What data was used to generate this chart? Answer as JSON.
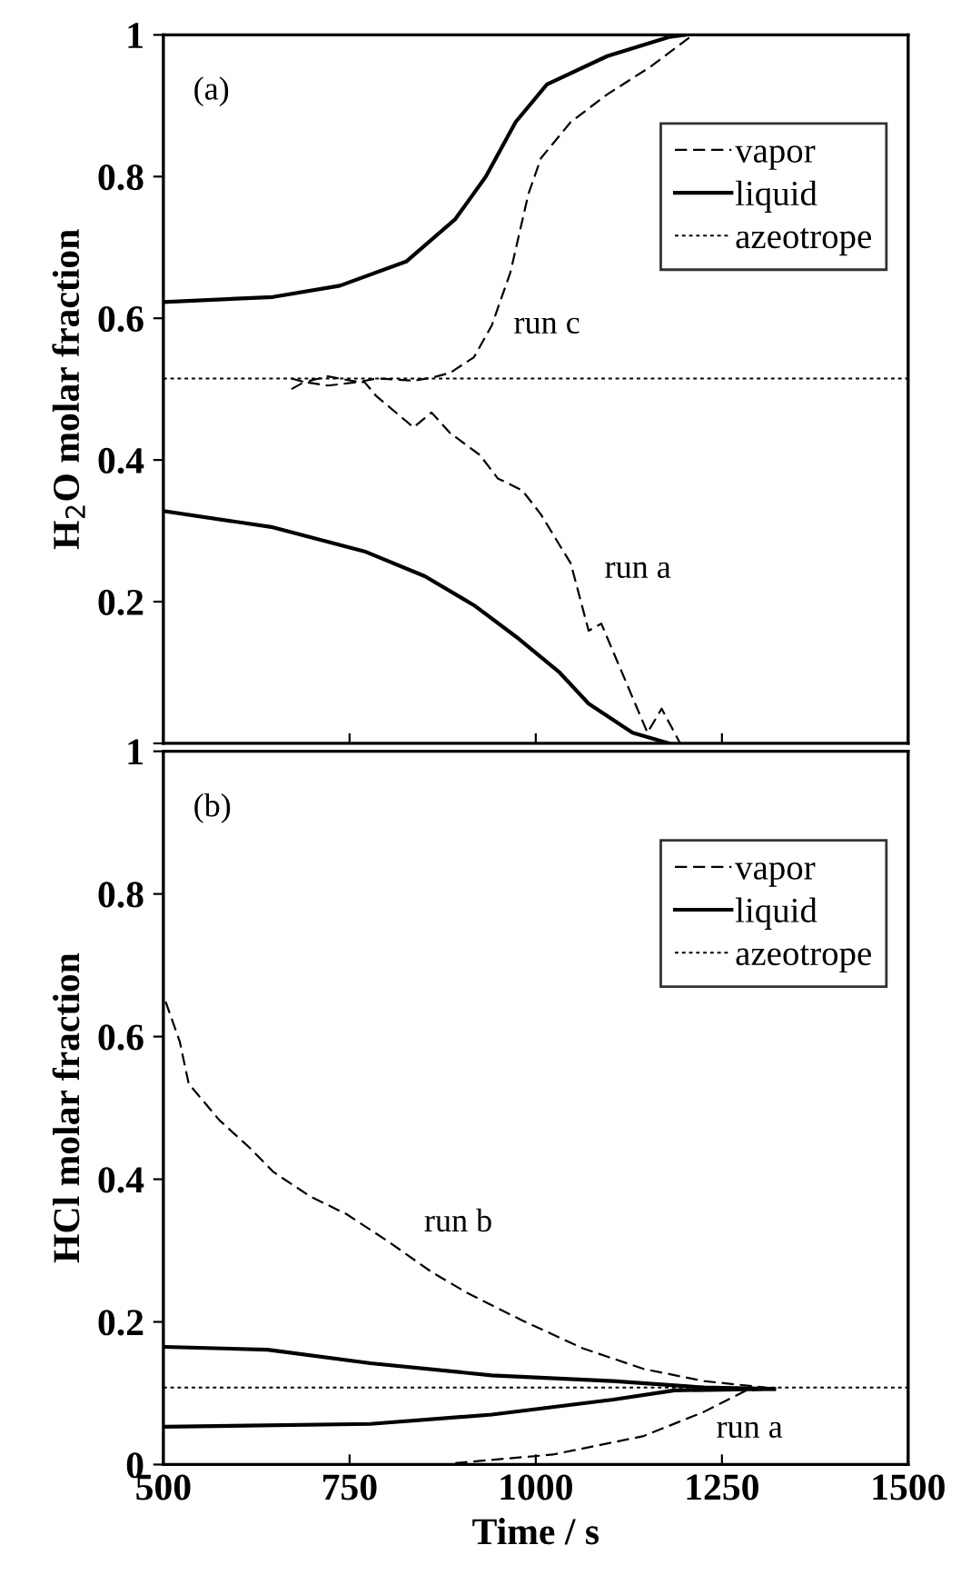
{
  "chart_data": [
    {
      "type": "line",
      "ylabel": "H$_{2}$O molar fraction",
      "xlim": [
        500,
        1500
      ],
      "ylim": [
        0,
        1
      ],
      "xticks": [
        500,
        750,
        1000,
        1250,
        1500
      ],
      "yticks": [
        {
          "value": 0,
          "label": null
        },
        0.2,
        0.4,
        0.6,
        0.8,
        1
      ],
      "tick_labels": "y",
      "legend": "top right",
      "grid": false,
      "series": [
        {
          "name": "vapor",
          "color": "#000000",
          "line_style": "dashed",
          "x": [
            672,
            689,
            721,
            762,
            786,
            836,
            860,
            885,
            917,
            941,
            966,
            990,
            1007,
            1047,
            1096,
            1154,
            1211
          ],
          "values": [
            0.515,
            0.51,
            0.518,
            0.51,
            0.515,
            0.512,
            0.516,
            0.523,
            0.545,
            0.59,
            0.665,
            0.775,
            0.826,
            0.877,
            0.916,
            0.955,
            1.0
          ]
        },
        {
          "color": "#000000",
          "line_style": "dashed",
          "x": [
            672,
            689,
            721,
            762,
            770,
            786,
            836,
            860,
            885,
            925,
            949,
            982,
            1007,
            1047,
            1071,
            1088,
            1150,
            1169,
            1194
          ],
          "values": [
            0.5,
            0.51,
            0.505,
            0.51,
            0.51,
            0.49,
            0.446,
            0.467,
            0.438,
            0.407,
            0.374,
            0.357,
            0.323,
            0.254,
            0.159,
            0.169,
            0.015,
            0.049,
            0
          ]
        },
        {
          "name": "liquid",
          "color": "#000000",
          "line_style": "solid",
          "x": [
            500,
            647,
            737,
            826,
            892,
            933,
            973,
            1015,
            1096,
            1179,
            1200
          ],
          "values": [
            0.623,
            0.63,
            0.646,
            0.68,
            0.74,
            0.8,
            0.877,
            0.93,
            0.97,
            0.997,
            1
          ]
        },
        {
          "color": "#000000",
          "line_style": "solid",
          "x": [
            500,
            647,
            770,
            851,
            917,
            973,
            1032,
            1071,
            1130,
            1179
          ],
          "values": [
            0.328,
            0.305,
            0.271,
            0.236,
            0.195,
            0.151,
            0.1,
            0.056,
            0.015,
            0
          ]
        }
      ],
      "ref_lines": [
        {
          "axis": "y",
          "value": 0.515,
          "label": "azeotrope",
          "color": "#000000",
          "line_style": "dotted"
        }
      ],
      "annotations": [
        "(a)",
        "run c",
        "run a"
      ]
    },
    {
      "type": "line",
      "xlabel": "Time / s",
      "ylabel": "HCl molar fraction",
      "xlim": [
        500,
        1500
      ],
      "ylim": [
        0,
        1
      ],
      "xticks": [
        500,
        750,
        1000,
        1250,
        1500
      ],
      "yticks": [
        0,
        0.2,
        0.4,
        0.6,
        0.8,
        1
      ],
      "legend": "top right",
      "grid": false,
      "series": [
        {
          "name": "vapor",
          "color": "#000000",
          "line_style": "dashed",
          "x": [
            503,
            522,
            534,
            575,
            616,
            648,
            697,
            746,
            803,
            860,
            909,
            982,
            1063,
            1145,
            1226,
            1308
          ],
          "values": [
            0.649,
            0.593,
            0.534,
            0.483,
            0.444,
            0.41,
            0.376,
            0.351,
            0.312,
            0.27,
            0.24,
            0.202,
            0.163,
            0.134,
            0.117,
            0.108
          ]
        },
        {
          "color": "#000000",
          "line_style": "dashed",
          "x": [
            892,
            1023,
            1145,
            1226,
            1283,
            1320
          ],
          "values": [
            0.002,
            0.014,
            0.04,
            0.074,
            0.104,
            0.106
          ]
        },
        {
          "name": "liquid",
          "color": "#000000",
          "line_style": "solid",
          "x": [
            503,
            640,
            778,
            941,
            1104,
            1226,
            1320
          ],
          "values": [
            0.165,
            0.161,
            0.142,
            0.125,
            0.117,
            0.108,
            0.106
          ]
        },
        {
          "color": "#000000",
          "line_style": "solid",
          "x": [
            503,
            778,
            941,
            1104,
            1186,
            1320
          ],
          "values": [
            0.053,
            0.057,
            0.07,
            0.091,
            0.104,
            0.106
          ]
        }
      ],
      "ref_lines": [
        {
          "axis": "y",
          "value": 0.108,
          "label": "azeotrope",
          "color": "#000000",
          "line_style": "dotted"
        }
      ],
      "annotations": [
        "(b)",
        "run b",
        "run a"
      ]
    }
  ]
}
